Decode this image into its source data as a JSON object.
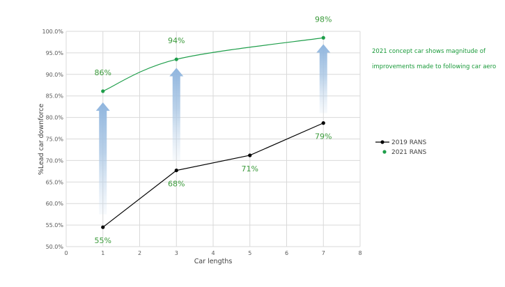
{
  "chart_data": {
    "type": "line",
    "title": "",
    "xlabel": "Car lengths",
    "ylabel": "%Lead car downforce",
    "xlim": [
      0,
      8
    ],
    "ylim": [
      50,
      100
    ],
    "x_ticks": [
      0,
      1,
      2,
      3,
      4,
      5,
      6,
      7,
      8
    ],
    "y_ticks": [
      "50.0%",
      "55.0%",
      "60.0%",
      "65.0%",
      "70.0%",
      "75.0%",
      "80.0%",
      "85.0%",
      "90.0%",
      "95.0%",
      "100.0%"
    ],
    "grid": true,
    "legend_position": "right",
    "series": [
      {
        "name": "2019 RANS",
        "color": "#000000",
        "x": [
          1,
          3,
          5,
          7
        ],
        "y": [
          54.5,
          67.7,
          71.2,
          78.7
        ],
        "labels": [
          "55%",
          "68%",
          "71%",
          "79%"
        ]
      },
      {
        "name": "2021 RANS",
        "color": "#1e9e4a",
        "x": [
          1,
          3,
          7
        ],
        "y": [
          86.1,
          93.5,
          98.5
        ],
        "labels": [
          "86%",
          "94%",
          "98%"
        ]
      }
    ],
    "annotation": {
      "lines": [
        "2021 concept car shows magnitude of",
        "improvements made to following car aero"
      ],
      "color": "#1a9a3a"
    },
    "arrows": [
      {
        "x": 1,
        "from": 57.5,
        "to": 83.5
      },
      {
        "x": 3,
        "from": 70,
        "to": 91.5
      },
      {
        "x": 7,
        "from": 81,
        "to": 97
      }
    ]
  }
}
